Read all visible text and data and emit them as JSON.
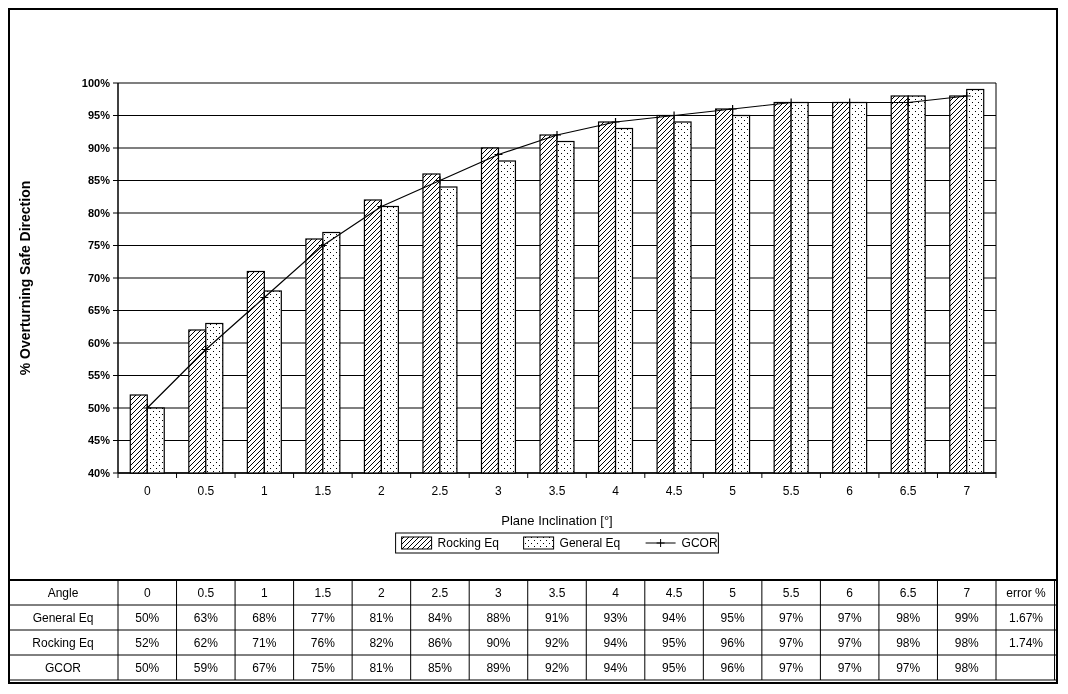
{
  "chart_data": {
    "type": "bar",
    "xlabel": "Plane Inclination [°]",
    "ylabel": "% Overturning Safe Direction",
    "categories": [
      "0",
      "0.5",
      "1",
      "1.5",
      "2",
      "2.5",
      "3",
      "3.5",
      "4",
      "4.5",
      "5",
      "5.5",
      "6",
      "6.5",
      "7"
    ],
    "series": [
      {
        "name": "Rocking Eq",
        "color": "#000000",
        "values": [
          52,
          62,
          71,
          76,
          82,
          86,
          90,
          92,
          94,
          95,
          96,
          97,
          97,
          98,
          98
        ],
        "value_labels": [
          "52%",
          "62%",
          "71%",
          "76%",
          "82%",
          "86%",
          "90%",
          "92%",
          "94%",
          "95%",
          "96%",
          "97%",
          "97%",
          "98%",
          "98%"
        ]
      },
      {
        "name": "General Eq",
        "color": "#000000",
        "values": [
          50,
          63,
          68,
          77,
          81,
          84,
          88,
          91,
          93,
          94,
          95,
          97,
          97,
          98,
          99
        ],
        "value_labels": [
          "50%",
          "63%",
          "68%",
          "77%",
          "81%",
          "84%",
          "88%",
          "91%",
          "93%",
          "94%",
          "95%",
          "97%",
          "97%",
          "98%",
          "99%"
        ]
      },
      {
        "name": "GCOR",
        "type": "line",
        "color": "#000000",
        "values": [
          50,
          59,
          67,
          75,
          81,
          85,
          89,
          92,
          94,
          95,
          96,
          97,
          97,
          97,
          98
        ],
        "value_labels": [
          "50%",
          "59%",
          "67%",
          "75%",
          "81%",
          "85%",
          "89%",
          "92%",
          "94%",
          "95%",
          "96%",
          "97%",
          "97%",
          "97%",
          "98%"
        ]
      }
    ],
    "ylim": [
      40,
      100
    ],
    "yticks": [
      {
        "value": 40,
        "label": "40%"
      },
      {
        "value": 45,
        "label": "45%"
      },
      {
        "value": 50,
        "label": "50%"
      },
      {
        "value": 55,
        "label": "55%"
      },
      {
        "value": 60,
        "label": "60%"
      },
      {
        "value": 65,
        "label": "65%"
      },
      {
        "value": 70,
        "label": "70%"
      },
      {
        "value": 75,
        "label": "75%"
      },
      {
        "value": 80,
        "label": "80%"
      },
      {
        "value": 85,
        "label": "85%"
      },
      {
        "value": 90,
        "label": "90%"
      },
      {
        "value": 95,
        "label": "95%"
      },
      {
        "value": 100,
        "label": "100%"
      }
    ],
    "grid": "y",
    "legend": "bottom",
    "marker": "cross",
    "annotations": [
      "Angle",
      "error %",
      "1.67%",
      "1.74%"
    ]
  }
}
